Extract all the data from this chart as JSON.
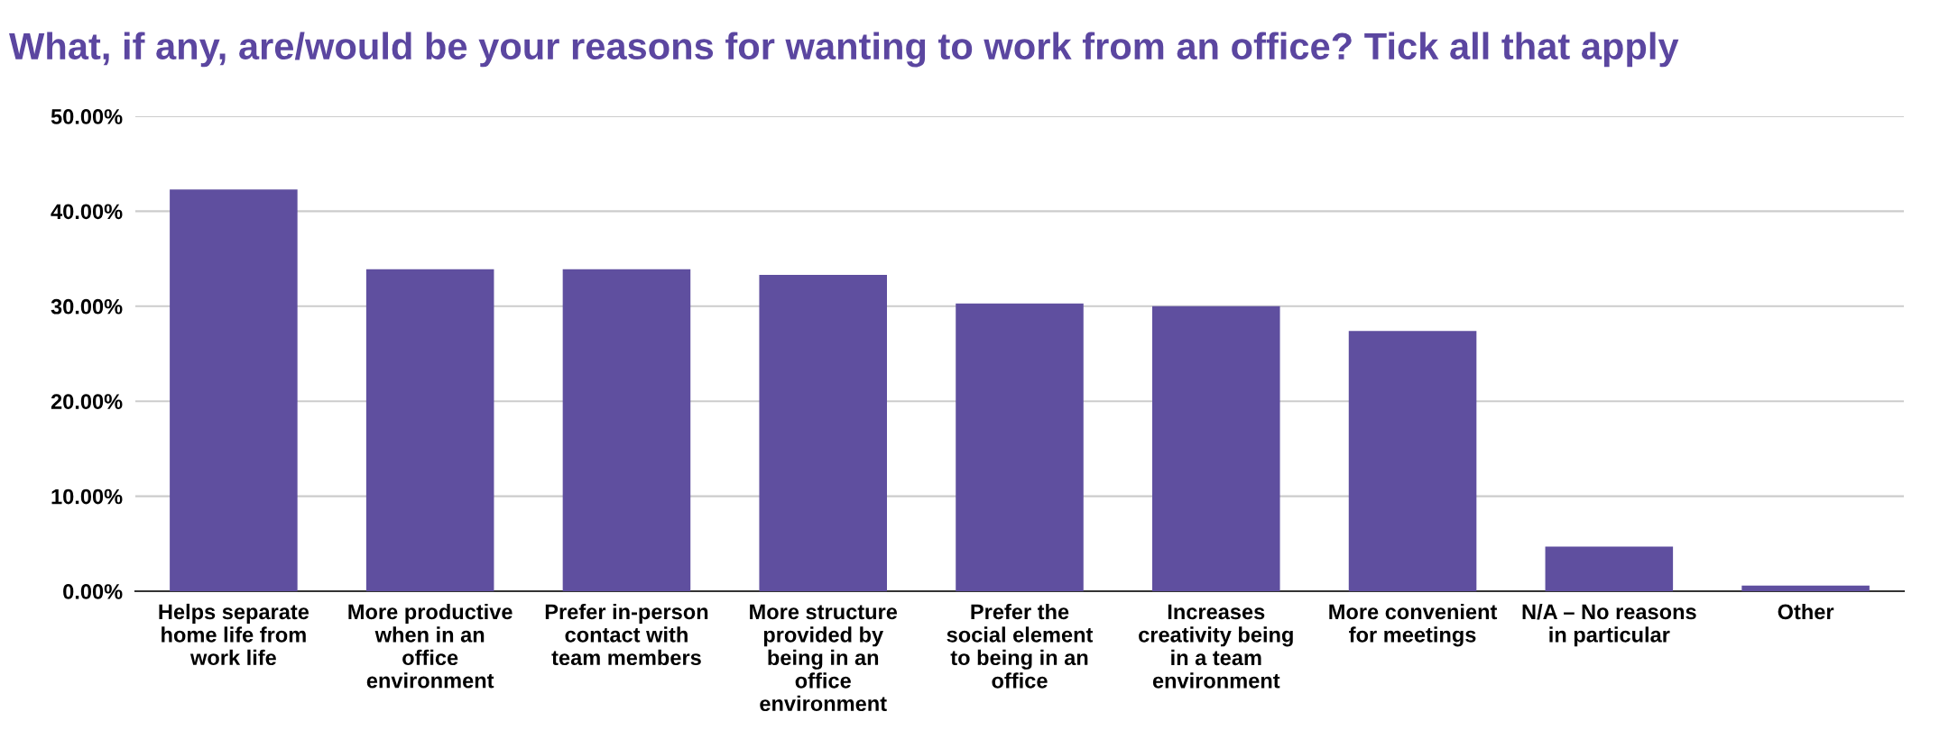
{
  "chart_data": {
    "type": "bar",
    "title": "What, if any, are/would be your reasons for wanting to work from an office? Tick all that apply",
    "categories": [
      "Helps separate home life from work life",
      "More productive when in an office environment",
      "Prefer in-person contact with team members",
      "More structure provided by being in an office environment",
      "Prefer the social element to being in an office",
      "Increases creativity being in a team environment",
      "More convenient for meetings",
      "N/A – No reasons in particular",
      "Other"
    ],
    "values": [
      42.3,
      33.9,
      33.9,
      33.3,
      30.3,
      30.0,
      27.4,
      4.7,
      0.6
    ],
    "color": "#5f4f9f",
    "ylim": [
      0,
      50
    ],
    "yticks": [
      {
        "value": 0,
        "label": "0.00%"
      },
      {
        "value": 10,
        "label": "10.00%"
      },
      {
        "value": 20,
        "label": "20.00%"
      },
      {
        "value": 30,
        "label": "30.00%"
      },
      {
        "value": 40,
        "label": "40.00%"
      },
      {
        "value": 50,
        "label": "50.00%"
      }
    ],
    "grid": "y",
    "legend": false
  }
}
